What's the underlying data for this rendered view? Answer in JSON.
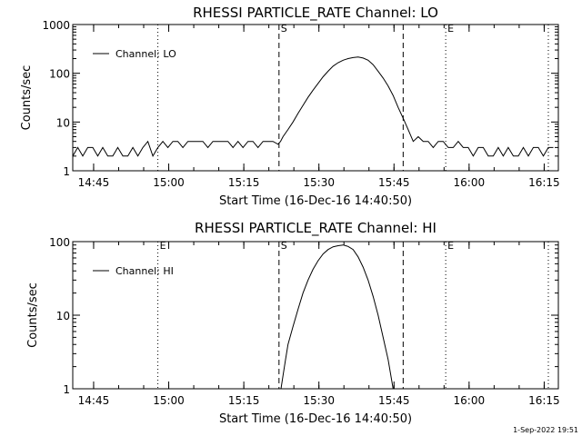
{
  "footer": "1-Sep-2022 19:51",
  "chart_data": [
    {
      "type": "line",
      "title": "RHESSI PARTICLE_RATE Channel: LO",
      "xlabel": "Start Time (16-Dec-16 14:40:50)",
      "ylabel": "Counts/sec",
      "y_scale": "log",
      "ylim": [
        1,
        1000
      ],
      "y_ticks": [
        1,
        10,
        100,
        1000
      ],
      "y_tick_labels": [
        "1",
        "10",
        "100",
        "1000"
      ],
      "xlim_minutes": [
        0,
        97
      ],
      "x_ticks": [
        4.17,
        19.17,
        34.17,
        49.17,
        64.17,
        79.17,
        94.17
      ],
      "x_tick_labels": [
        "14:45",
        "15:00",
        "15:15",
        "15:30",
        "15:45",
        "16:00",
        "16:15"
      ],
      "vlines": [
        {
          "x": 17.0,
          "style": "dotted",
          "label": ""
        },
        {
          "x": 41.2,
          "style": "dashed",
          "label": "S"
        },
        {
          "x": 66.0,
          "style": "dashed",
          "label": ""
        },
        {
          "x": 74.5,
          "style": "dotted",
          "label": "E"
        },
        {
          "x": 95.0,
          "style": "dotted",
          "label": ""
        }
      ],
      "legend": {
        "position": "top-left"
      },
      "series": [
        {
          "name": "Channel: LO",
          "x": [
            0,
            1,
            2,
            3,
            4,
            5,
            6,
            7,
            8,
            9,
            10,
            11,
            12,
            13,
            14,
            15,
            16,
            17,
            18,
            19,
            20,
            21,
            22,
            23,
            24,
            25,
            26,
            27,
            28,
            29,
            30,
            31,
            32,
            33,
            34,
            35,
            36,
            37,
            38,
            39,
            40,
            41,
            41.5,
            42,
            43,
            44,
            45,
            46,
            47,
            48,
            49,
            50,
            51,
            52,
            53,
            54,
            55,
            56,
            57,
            58,
            59,
            60,
            61,
            62,
            63,
            64,
            65,
            66,
            67,
            68,
            69,
            70,
            71,
            72,
            73,
            74,
            75,
            76,
            77,
            78,
            79,
            80,
            81,
            82,
            83,
            84,
            85,
            86,
            87,
            88,
            89,
            90,
            91,
            92,
            93,
            94,
            95,
            96
          ],
          "y": [
            2,
            3,
            2,
            3,
            3,
            2,
            3,
            2,
            2,
            3,
            2,
            2,
            3,
            2,
            3,
            4,
            2,
            3,
            4,
            3,
            4,
            4,
            3,
            4,
            4,
            4,
            4,
            3,
            4,
            4,
            4,
            4,
            3,
            4,
            3,
            4,
            4,
            3,
            4,
            4,
            4,
            3.5,
            4,
            5,
            7,
            10,
            15,
            22,
            32,
            45,
            62,
            85,
            110,
            140,
            165,
            185,
            200,
            210,
            215,
            205,
            185,
            150,
            110,
            80,
            55,
            35,
            20,
            12,
            7,
            4,
            5,
            4,
            4,
            3,
            4,
            4,
            3,
            3,
            4,
            3,
            3,
            2,
            3,
            3,
            2,
            2,
            3,
            2,
            3,
            2,
            2,
            3,
            2,
            3,
            3,
            2,
            3,
            3
          ]
        }
      ]
    },
    {
      "type": "line",
      "title": "RHESSI PARTICLE_RATE Channel: HI",
      "xlabel": "Start Time (16-Dec-16 14:40:50)",
      "ylabel": "Counts/sec",
      "y_scale": "log",
      "ylim": [
        1,
        100
      ],
      "y_ticks": [
        1,
        10,
        100
      ],
      "y_tick_labels": [
        "1",
        "10",
        "100"
      ],
      "xlim_minutes": [
        0,
        97
      ],
      "x_ticks": [
        4.17,
        19.17,
        34.17,
        49.17,
        64.17,
        79.17,
        94.17
      ],
      "x_tick_labels": [
        "14:45",
        "15:00",
        "15:15",
        "15:30",
        "15:45",
        "16:00",
        "16:15"
      ],
      "vlines": [
        {
          "x": 17.0,
          "style": "dotted",
          "label": "E"
        },
        {
          "x": 41.2,
          "style": "dashed",
          "label": "S"
        },
        {
          "x": 66.0,
          "style": "dashed",
          "label": ""
        },
        {
          "x": 74.5,
          "style": "dotted",
          "label": "E"
        },
        {
          "x": 95.0,
          "style": "dotted",
          "label": ""
        }
      ],
      "legend": {
        "position": "top-left"
      },
      "series": [
        {
          "name": "Channel: HI",
          "x": [
            41.6,
            42,
            42.5,
            43,
            44,
            45,
            46,
            47,
            48,
            49,
            50,
            51,
            52,
            53,
            54,
            55,
            56,
            57,
            58,
            59,
            60,
            61,
            62,
            63,
            64
          ],
          "y": [
            1,
            1.5,
            2.5,
            4,
            7,
            12,
            20,
            30,
            42,
            55,
            68,
            78,
            85,
            88,
            90,
            86,
            78,
            62,
            45,
            30,
            18,
            10,
            5,
            2.5,
            1
          ]
        }
      ]
    }
  ]
}
